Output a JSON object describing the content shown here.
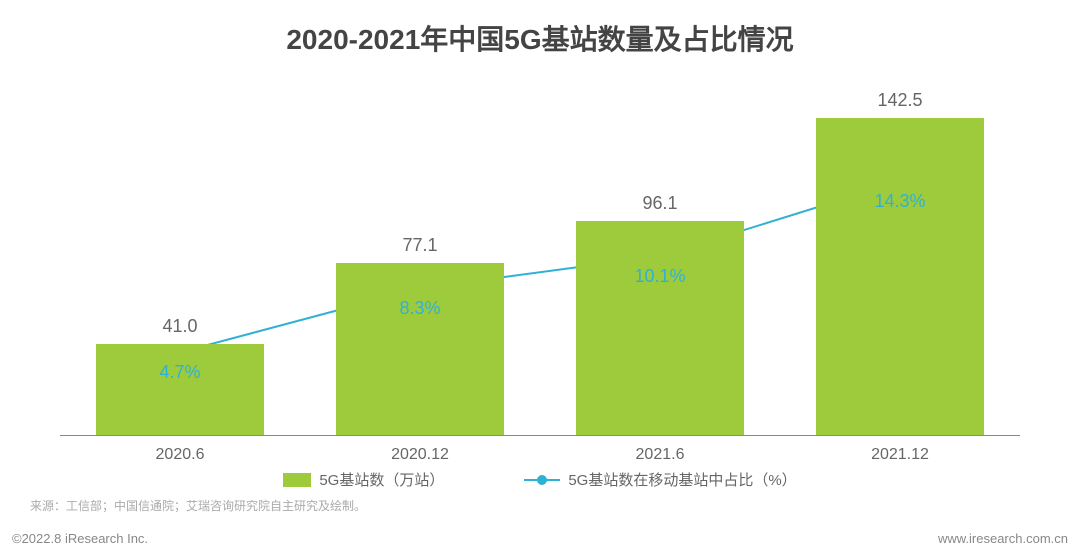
{
  "chart": {
    "type": "bar+line",
    "title": "2020-2021年中国5G基站数量及占比情况",
    "title_fontsize": 28,
    "title_color": "#444444",
    "categories": [
      "2020.6",
      "2020.12",
      "2021.6",
      "2021.12"
    ],
    "bars": {
      "values": [
        41.0,
        77.1,
        96.1,
        142.5
      ],
      "labels": [
        "41.0",
        "77.1",
        "96.1",
        "142.5"
      ],
      "color": "#9ecb3c",
      "width_ratio": 0.7,
      "value_fontsize": 18,
      "value_color": "#666666"
    },
    "line": {
      "values_pct": [
        4.7,
        8.3,
        10.1,
        14.3
      ],
      "labels": [
        "4.7%",
        "8.3%",
        "10.1%",
        "14.3%"
      ],
      "color": "#2fb1d6",
      "marker_fill": "#2fb1d6",
      "marker_border": "#2fb1d6",
      "marker_size": 10,
      "line_width": 2,
      "label_fontsize": 18,
      "label_color": "#2fb1d6"
    },
    "ymax": 160,
    "line_ymax_pct": 20,
    "axis_color": "#888888",
    "category_fontsize": 16,
    "category_color": "#666666",
    "background_color": "#ffffff",
    "legend": {
      "bar_label": "5G基站数（万站）",
      "line_label": "5G基站数在移动基站中占比（%）",
      "fontsize": 15,
      "color": "#666666"
    },
    "source": "来源：工信部；中国信通院；艾瑞咨询研究院自主研究及绘制。",
    "source_fontsize": 12,
    "source_color": "#aaaaaa",
    "copyright": "©2022.8 iResearch Inc.",
    "site": "www.iresearch.com.cn",
    "footer_fontsize": 13,
    "footer_color": "#888888"
  }
}
